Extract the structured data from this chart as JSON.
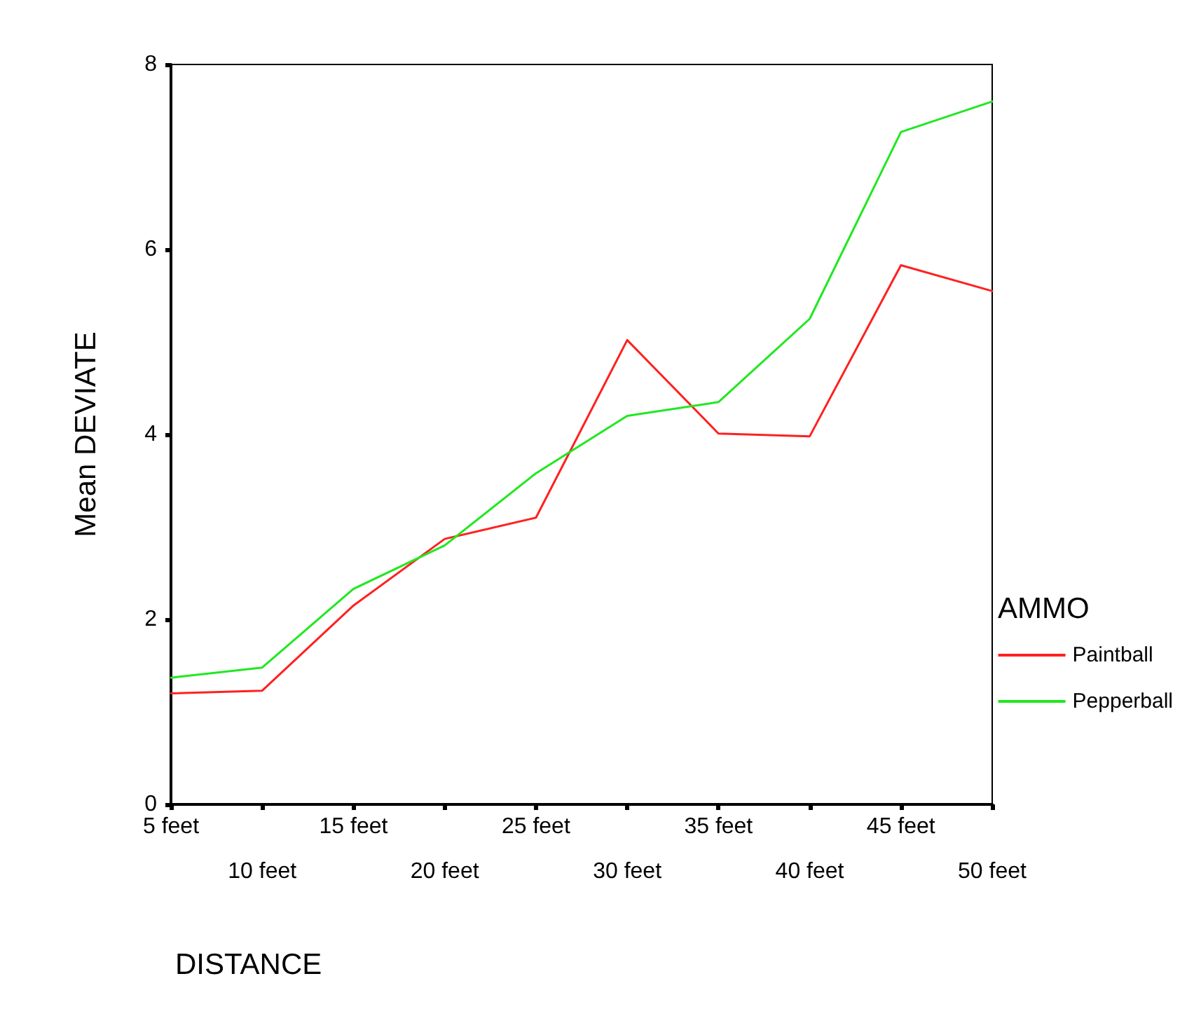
{
  "chart_data": {
    "type": "line",
    "xlabel": "DISTANCE",
    "ylabel": "Mean DEVIATE",
    "legend_title": "AMMO",
    "legend": "right",
    "grid": false,
    "marker": "none",
    "line_style": "solid",
    "categories": [
      "5 feet",
      "10 feet",
      "15 feet",
      "20 feet",
      "25 feet",
      "30 feet",
      "35 feet",
      "40 feet",
      "45 feet",
      "50 feet"
    ],
    "ylim": [
      0,
      8
    ],
    "yticks": [
      0,
      2,
      4,
      6,
      8
    ],
    "series": [
      {
        "name": "Paintball",
        "color": "#ff2020",
        "values": [
          1.2,
          1.23,
          2.15,
          2.87,
          3.1,
          5.02,
          4.01,
          3.98,
          5.83,
          5.55
        ]
      },
      {
        "name": "Pepperball",
        "color": "#20e820",
        "values": [
          1.37,
          1.48,
          2.33,
          2.8,
          3.58,
          4.2,
          4.35,
          5.25,
          7.27,
          7.6
        ]
      }
    ]
  }
}
